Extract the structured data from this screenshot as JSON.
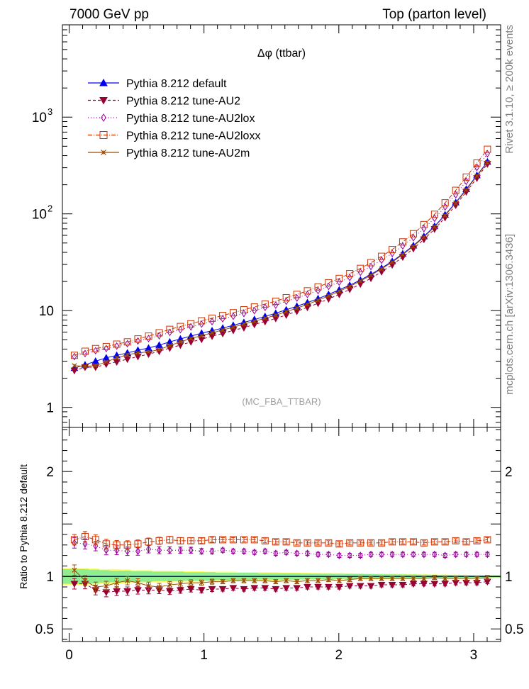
{
  "header": {
    "left": "7000 GeV pp",
    "right": "Top (parton level)"
  },
  "side": {
    "rivet": "Rivet 3.1.10, ≥ 200k events",
    "mcplots": "mcplots.cern.ch [arXiv:1306.3436]"
  },
  "chart_data": {
    "type": "scatter",
    "title": "Δφ (ttbar)",
    "watermark": "(MC_FBA_TTBAR)",
    "xlim": [
      -0.05,
      3.2
    ],
    "ylim": [
      0.62,
      9000
    ],
    "yscale": "log",
    "x_ticks": [
      {
        "v": 0,
        "label": "0"
      },
      {
        "v": 1,
        "label": "1"
      },
      {
        "v": 2,
        "label": "2"
      },
      {
        "v": 3,
        "label": "3"
      }
    ],
    "y_ticks": [
      {
        "v": 1,
        "label": "1"
      },
      {
        "v": 10,
        "label": "10"
      },
      {
        "v": 100,
        "label": "10",
        "exp": "2"
      },
      {
        "v": 1000,
        "label": "10",
        "exp": "3"
      }
    ],
    "x": [
      0.039,
      0.118,
      0.196,
      0.275,
      0.353,
      0.432,
      0.51,
      0.589,
      0.668,
      0.746,
      0.825,
      0.903,
      0.982,
      1.06,
      1.139,
      1.217,
      1.296,
      1.374,
      1.453,
      1.532,
      1.61,
      1.689,
      1.767,
      1.846,
      1.924,
      2.003,
      2.081,
      2.16,
      2.238,
      2.317,
      2.396,
      2.474,
      2.553,
      2.631,
      2.71,
      2.788,
      2.867,
      2.945,
      3.024,
      3.102
    ],
    "series": [
      {
        "name": "Pythia 8.212 default",
        "color": "#0000ee",
        "marker": "triangle-up",
        "dash": "",
        "values": [
          2.55,
          2.75,
          3.0,
          3.25,
          3.45,
          3.65,
          3.9,
          4.1,
          4.4,
          4.75,
          5.1,
          5.45,
          5.85,
          6.2,
          6.6,
          7.05,
          7.55,
          8.1,
          8.7,
          9.4,
          10.2,
          11.1,
          12.1,
          13.3,
          14.7,
          16.4,
          18.3,
          20.7,
          23.7,
          27.5,
          32.3,
          38.7,
          47.0,
          58.5,
          74.5,
          98.0,
          131,
          180,
          250,
          345
        ]
      },
      {
        "name": "Pythia 8.212 tune-AU2",
        "color": "#990033",
        "marker": "triangle-down",
        "dash": "4,3",
        "values": [
          2.4,
          2.6,
          2.6,
          2.8,
          2.95,
          3.15,
          3.35,
          3.55,
          3.8,
          4.1,
          4.4,
          4.75,
          5.05,
          5.45,
          5.8,
          6.25,
          6.65,
          7.2,
          7.7,
          8.3,
          9.0,
          9.85,
          10.8,
          11.9,
          13.2,
          14.7,
          16.6,
          18.8,
          21.6,
          25.2,
          29.7,
          35.8,
          43.7,
          54.5,
          69.5,
          91.5,
          123,
          169,
          234,
          328
        ]
      },
      {
        "name": "Pythia 8.212 tune-AU2lox",
        "color": "#990099",
        "marker": "diamond-open",
        "dash": "1,3",
        "values": [
          3.35,
          3.6,
          3.85,
          4.05,
          4.3,
          4.55,
          4.85,
          5.15,
          5.5,
          5.95,
          6.35,
          6.8,
          7.25,
          7.7,
          8.25,
          8.75,
          9.35,
          10.0,
          10.8,
          11.4,
          12.5,
          13.5,
          14.7,
          16.1,
          17.8,
          19.7,
          22.0,
          24.9,
          28.6,
          33.2,
          39.0,
          46.7,
          56.7,
          70.5,
          90.0,
          118,
          158,
          217,
          302,
          418
        ]
      },
      {
        "name": "Pythia 8.212 tune-AU2loxx",
        "color": "#cc3300",
        "marker": "square-open",
        "dash": "6,2,1,2",
        "values": [
          3.45,
          3.8,
          4.05,
          4.25,
          4.5,
          4.75,
          5.1,
          5.45,
          5.9,
          6.4,
          6.85,
          7.3,
          7.85,
          8.35,
          8.9,
          9.5,
          10.2,
          10.9,
          11.7,
          12.5,
          13.6,
          14.7,
          16.0,
          17.6,
          19.4,
          21.5,
          24.1,
          27.3,
          31.3,
          36.4,
          42.8,
          51.3,
          62.3,
          77.5,
          99.0,
          130,
          175,
          240,
          335,
          465
        ]
      },
      {
        "name": "Pythia 8.212 tune-AU2m",
        "color": "#994c00",
        "marker": "star",
        "dash": "",
        "values": [
          2.7,
          2.65,
          2.7,
          2.95,
          3.25,
          3.5,
          3.65,
          3.75,
          3.95,
          4.35,
          4.75,
          5.15,
          5.5,
          5.9,
          6.3,
          6.75,
          7.25,
          7.75,
          8.35,
          8.95,
          9.75,
          10.6,
          11.6,
          12.8,
          14.2,
          15.8,
          17.8,
          20.2,
          23.2,
          27.0,
          31.7,
          38.0,
          46.2,
          57.5,
          73.5,
          96.5,
          129,
          177,
          246,
          340
        ]
      }
    ],
    "ratio": {
      "ylabel": "Ratio to Pythia 8.212 default",
      "ylim": [
        0.38,
        2.42
      ],
      "y_ticks": [
        {
          "v": 0.5,
          "label": "0.5"
        },
        {
          "v": 1,
          "label": "1"
        },
        {
          "v": 2,
          "label": "2"
        }
      ],
      "band_color_inner": "#90ee90",
      "band_color_outer": "#ffff66",
      "band_inner": [
        0.07,
        0.065,
        0.06,
        0.055,
        0.055,
        0.05,
        0.05,
        0.045,
        0.045,
        0.045,
        0.04,
        0.04,
        0.04,
        0.035,
        0.035,
        0.035,
        0.035,
        0.03,
        0.03,
        0.03,
        0.03,
        0.028,
        0.027,
        0.026,
        0.025,
        0.024,
        0.023,
        0.022,
        0.021,
        0.02,
        0.019,
        0.018,
        0.017,
        0.016,
        0.015,
        0.014,
        0.013,
        0.012,
        0.011,
        0.01
      ],
      "band_outer": [
        0.08,
        0.075,
        0.07,
        0.07,
        0.065,
        0.06,
        0.06,
        0.055,
        0.055,
        0.05,
        0.05,
        0.05,
        0.045,
        0.045,
        0.045,
        0.04,
        0.04,
        0.04,
        0.04,
        0.037,
        0.035,
        0.034,
        0.033,
        0.032,
        0.031,
        0.03,
        0.029,
        0.028,
        0.026,
        0.025,
        0.024,
        0.022,
        0.02,
        0.019,
        0.018,
        0.017,
        0.016,
        0.015,
        0.014,
        0.013
      ],
      "series": [
        {
          "values": [
            0.93,
            0.93,
            0.87,
            0.85,
            0.86,
            0.86,
            0.87,
            0.87,
            0.87,
            0.86,
            0.87,
            0.88,
            0.87,
            0.88,
            0.88,
            0.89,
            0.88,
            0.89,
            0.89,
            0.88,
            0.89,
            0.89,
            0.9,
            0.9,
            0.9,
            0.9,
            0.91,
            0.91,
            0.91,
            0.92,
            0.92,
            0.92,
            0.93,
            0.93,
            0.93,
            0.93,
            0.94,
            0.94,
            0.94,
            0.95
          ]
        },
        {
          "values": [
            1.32,
            1.31,
            1.29,
            1.25,
            1.25,
            1.24,
            1.24,
            1.26,
            1.25,
            1.25,
            1.25,
            1.25,
            1.24,
            1.24,
            1.25,
            1.24,
            1.24,
            1.23,
            1.24,
            1.22,
            1.23,
            1.22,
            1.22,
            1.21,
            1.21,
            1.2,
            1.2,
            1.2,
            1.21,
            1.21,
            1.21,
            1.21,
            1.21,
            1.21,
            1.21,
            1.2,
            1.21,
            1.21,
            1.21,
            1.21
          ]
        },
        {
          "values": [
            1.35,
            1.38,
            1.35,
            1.31,
            1.3,
            1.3,
            1.31,
            1.33,
            1.34,
            1.35,
            1.34,
            1.34,
            1.34,
            1.35,
            1.35,
            1.35,
            1.35,
            1.35,
            1.34,
            1.33,
            1.33,
            1.32,
            1.32,
            1.32,
            1.32,
            1.31,
            1.32,
            1.32,
            1.32,
            1.32,
            1.33,
            1.33,
            1.33,
            1.32,
            1.33,
            1.33,
            1.34,
            1.33,
            1.34,
            1.35
          ]
        },
        {
          "values": [
            1.06,
            0.96,
            0.9,
            0.91,
            0.94,
            0.96,
            0.94,
            0.91,
            0.9,
            0.92,
            0.93,
            0.94,
            0.94,
            0.95,
            0.95,
            0.96,
            0.96,
            0.96,
            0.96,
            0.95,
            0.96,
            0.95,
            0.96,
            0.96,
            0.97,
            0.96,
            0.97,
            0.98,
            0.98,
            0.98,
            0.98,
            0.98,
            0.98,
            0.98,
            0.99,
            0.98,
            0.98,
            0.98,
            0.98,
            0.99
          ]
        }
      ]
    }
  }
}
